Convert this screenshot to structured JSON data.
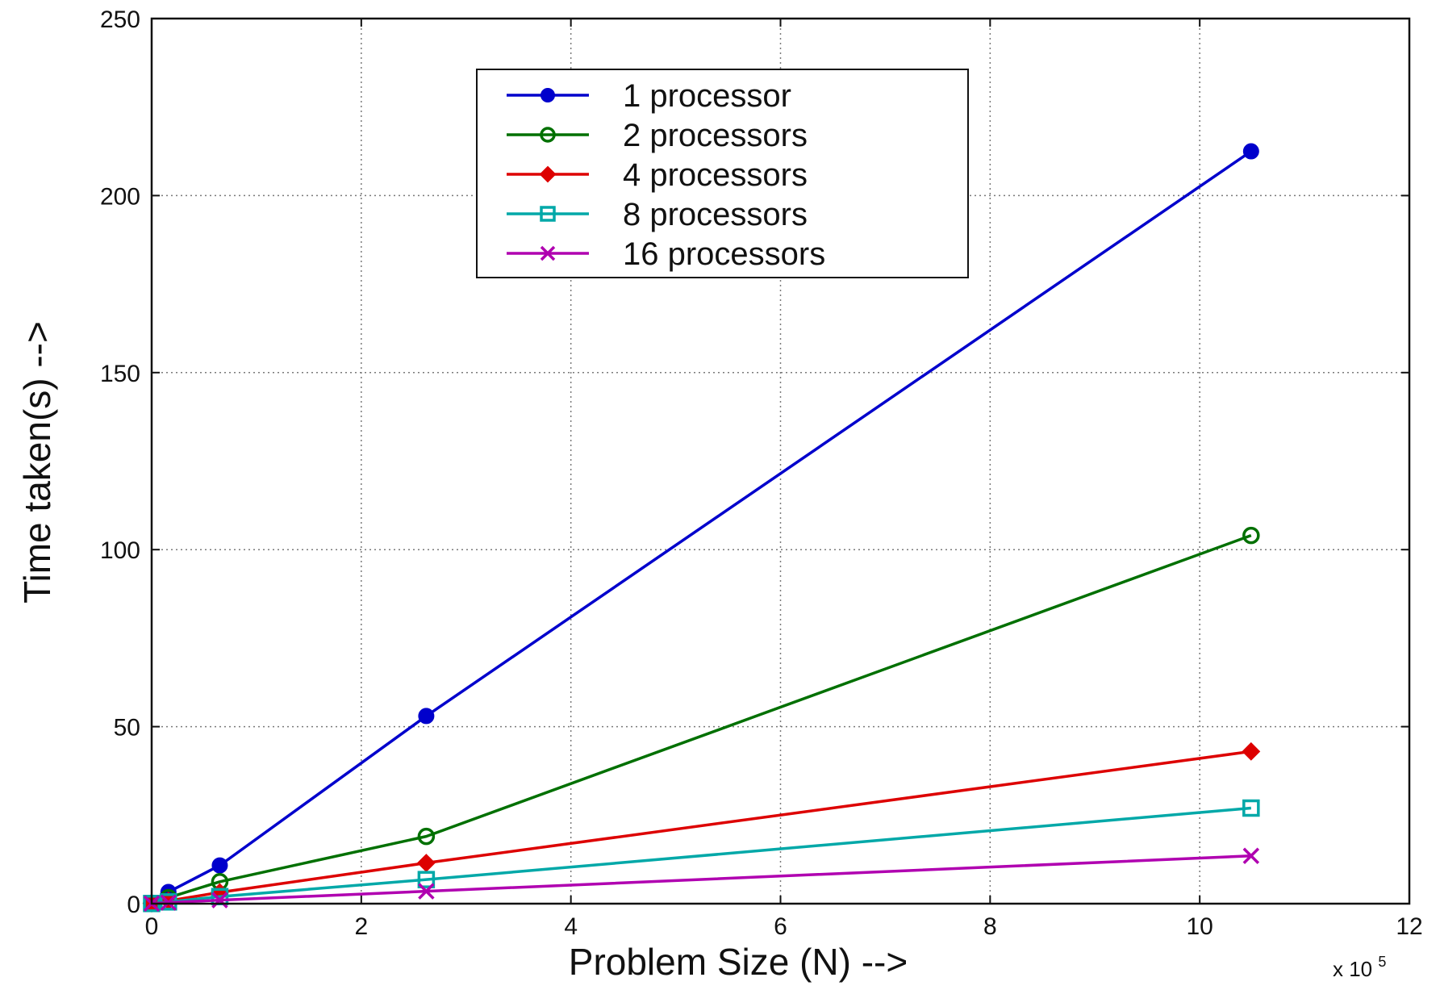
{
  "chart_data": {
    "type": "line",
    "title": "",
    "xlabel": "Problem Size (N) -->",
    "ylabel": "Time taken(s) -->",
    "x_multiplier_label": "x 10",
    "x_multiplier_exp": "5",
    "xlim": [
      0,
      12
    ],
    "ylim": [
      0,
      250
    ],
    "xticks": [
      0,
      2,
      4,
      6,
      8,
      10,
      12
    ],
    "yticks": [
      0,
      50,
      100,
      150,
      200,
      250
    ],
    "x_tick_labels": [
      "0",
      "2",
      "4",
      "6",
      "8",
      "10",
      "12"
    ],
    "y_tick_labels": [
      "0",
      "50",
      "100",
      "150",
      "200",
      "250"
    ],
    "grid": true,
    "legend_position": "top-center",
    "x": [
      0.0,
      0.16,
      0.65,
      2.62,
      10.49
    ],
    "series": [
      {
        "name": "1 processor",
        "color": "#0000cc",
        "marker": "dot",
        "values": [
          0.2,
          3.3,
          10.8,
          53,
          212.5
        ]
      },
      {
        "name": "2 processors",
        "color": "#007000",
        "marker": "circle",
        "values": [
          0.1,
          1.7,
          6.2,
          19,
          104
        ]
      },
      {
        "name": "4 processors",
        "color": "#dd0000",
        "marker": "diamond",
        "values": [
          0.1,
          0.8,
          3.2,
          11.5,
          43
        ]
      },
      {
        "name": "8 processors",
        "color": "#00a8a8",
        "marker": "square",
        "values": [
          0.05,
          0.5,
          2.0,
          6.8,
          27
        ]
      },
      {
        "name": "16 processors",
        "color": "#b000b0",
        "marker": "x",
        "values": [
          0.03,
          0.3,
          1.0,
          3.5,
          13.5
        ]
      }
    ]
  }
}
